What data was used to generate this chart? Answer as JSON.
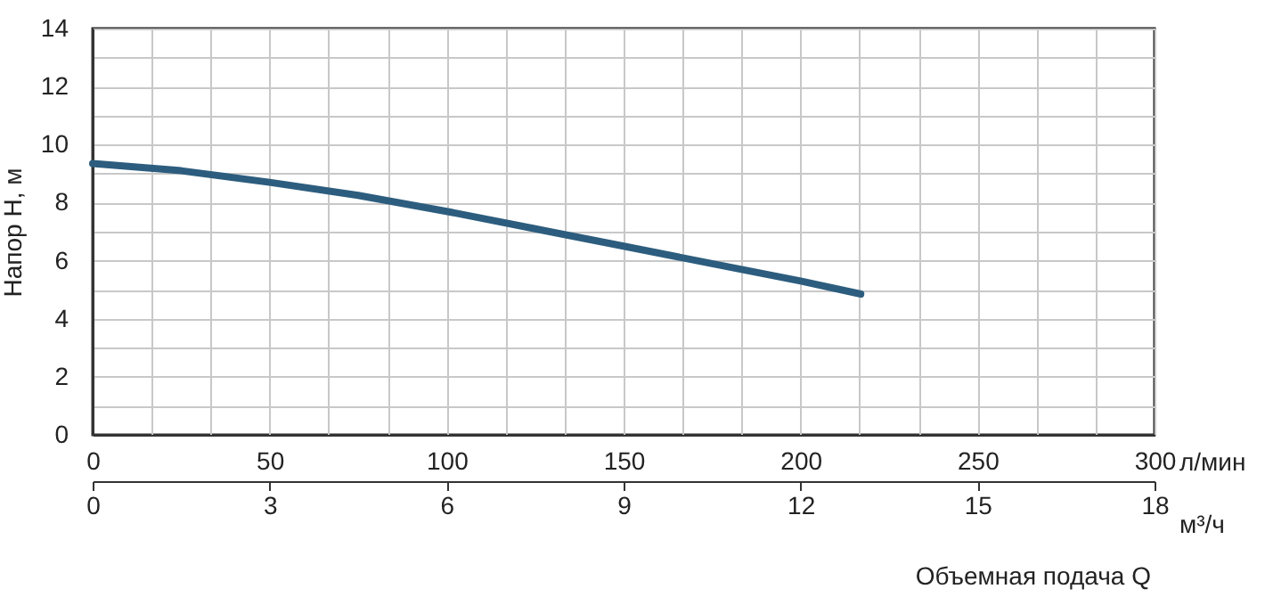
{
  "chart_data": {
    "type": "line",
    "xlabel": "Объемная подача Q",
    "ylabel": "Напор Н, м",
    "x2label": "м³/ч",
    "annotations": [
      "л/мин"
    ],
    "x": [
      0,
      25,
      50,
      75,
      100,
      125,
      150,
      175,
      200,
      217
    ],
    "series": [
      {
        "color": "#2d5d7e",
        "values": [
          9.35,
          9.1,
          8.7,
          8.25,
          7.7,
          7.1,
          6.5,
          5.9,
          5.3,
          4.85
        ]
      }
    ],
    "xlim": [
      0,
      300
    ],
    "xticks": [
      0,
      {
        "value": 16.667,
        "label": null
      },
      {
        "value": 33.333,
        "label": null
      },
      50,
      {
        "value": 66.667,
        "label": null
      },
      {
        "value": 83.333,
        "label": null
      },
      100,
      {
        "value": 116.667,
        "label": null
      },
      {
        "value": 133.333,
        "label": null
      },
      150,
      {
        "value": 166.667,
        "label": null
      },
      {
        "value": 183.333,
        "label": null
      },
      200,
      {
        "value": 216.667,
        "label": null
      },
      {
        "value": 233.333,
        "label": null
      },
      250,
      {
        "value": 266.667,
        "label": null
      },
      {
        "value": 283.333,
        "label": null
      },
      300
    ],
    "ylim": [
      0,
      14
    ],
    "yticks": [
      0,
      {
        "value": 1,
        "label": null
      },
      2,
      {
        "value": 3,
        "label": null
      },
      4,
      {
        "value": 5,
        "label": null
      },
      6,
      {
        "value": 7,
        "label": null
      },
      8,
      {
        "value": 9,
        "label": null
      },
      10,
      {
        "value": 11,
        "label": null
      },
      12,
      {
        "value": 13,
        "label": null
      },
      14
    ],
    "x2lim": [
      0,
      18
    ],
    "x2ticks": [
      0,
      3,
      6,
      9,
      12,
      15,
      18
    ],
    "grid": true,
    "line_style": "solid",
    "marker": "none"
  }
}
